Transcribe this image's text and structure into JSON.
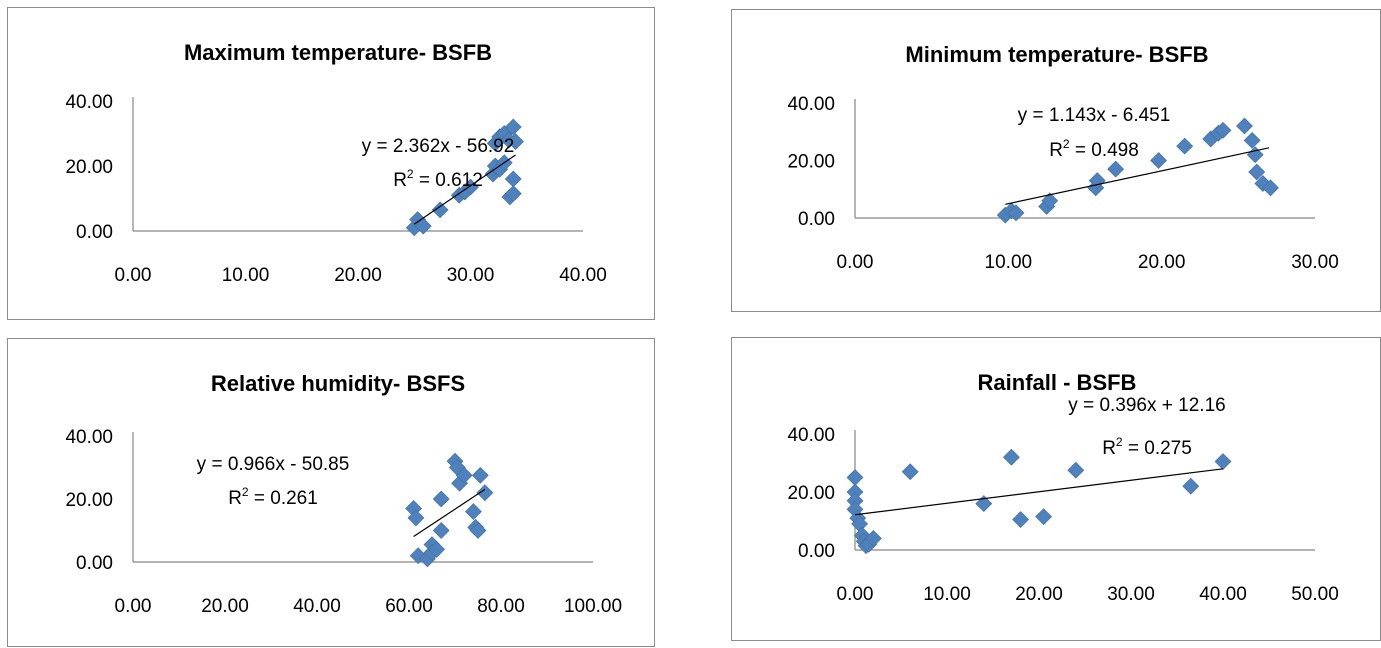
{
  "chart_data": [
    {
      "type": "scatter",
      "title": "Maximum temperature- BSFB",
      "x_ticks": [
        "0.00",
        "10.00",
        "20.00",
        "30.00",
        "40.00"
      ],
      "y_ticks": [
        "0.00",
        "20.00",
        "40.00"
      ],
      "xlim": [
        0,
        40
      ],
      "ylim": [
        0,
        40
      ],
      "points": [
        [
          25,
          1
        ],
        [
          25.3,
          3.5
        ],
        [
          25.8,
          1.5
        ],
        [
          27.3,
          6.5
        ],
        [
          29,
          11
        ],
        [
          29.5,
          12
        ],
        [
          30,
          13.5
        ],
        [
          32,
          17.5
        ],
        [
          32.2,
          20
        ],
        [
          32.6,
          19
        ],
        [
          33,
          21
        ],
        [
          32.2,
          27
        ],
        [
          32.6,
          29
        ],
        [
          33,
          30
        ],
        [
          33.4,
          28
        ],
        [
          33.8,
          32
        ],
        [
          34,
          27.5
        ],
        [
          33.5,
          10.5
        ],
        [
          33.8,
          11.5
        ],
        [
          33.8,
          16
        ]
      ],
      "trendline": {
        "slope": 2.362,
        "intercept": -56.92,
        "x_range": [
          25,
          34
        ]
      },
      "equation": "y = 2.362x - 56.92",
      "r2_prefix": "R",
      "r2_value": " = 0.612"
    },
    {
      "type": "scatter",
      "title": "Minimum temperature- BSFB",
      "x_ticks": [
        "0.00",
        "10.00",
        "20.00",
        "30.00"
      ],
      "y_ticks": [
        "0.00",
        "20.00",
        "40.00"
      ],
      "xlim": [
        0,
        30
      ],
      "ylim": [
        0,
        40
      ],
      "points": [
        [
          9.8,
          1
        ],
        [
          10.2,
          2.5
        ],
        [
          10.5,
          1.8
        ],
        [
          12.5,
          4
        ],
        [
          12.7,
          6
        ],
        [
          15.7,
          10.5
        ],
        [
          15.8,
          13
        ],
        [
          17,
          17
        ],
        [
          19.8,
          20
        ],
        [
          21.5,
          25
        ],
        [
          23.2,
          27.5
        ],
        [
          23.7,
          29.5
        ],
        [
          24,
          30.5
        ],
        [
          25.4,
          32
        ],
        [
          25.9,
          27
        ],
        [
          26.1,
          22
        ],
        [
          26.2,
          16
        ],
        [
          26.6,
          12
        ],
        [
          27.1,
          10.5
        ]
      ],
      "trendline": {
        "slope": 1.143,
        "intercept": -6.451,
        "x_range": [
          9.8,
          27
        ]
      },
      "equation": "y = 1.143x - 6.451",
      "r2_prefix": "R",
      "r2_value": " = 0.498"
    },
    {
      "type": "scatter",
      "title": "Relative humidity- BSFS",
      "x_ticks": [
        "0.00",
        "20.00",
        "40.00",
        "60.00",
        "80.00",
        "100.00"
      ],
      "y_ticks": [
        "0.00",
        "20.00",
        "40.00"
      ],
      "xlim": [
        0,
        100
      ],
      "ylim": [
        0,
        40
      ],
      "points": [
        [
          61,
          17
        ],
        [
          61.5,
          14
        ],
        [
          62,
          2
        ],
        [
          64,
          1
        ],
        [
          65,
          5.5
        ],
        [
          65,
          3
        ],
        [
          66,
          4
        ],
        [
          67,
          10
        ],
        [
          67,
          20
        ],
        [
          70,
          32
        ],
        [
          70.5,
          30
        ],
        [
          71,
          25
        ],
        [
          72,
          27.5
        ],
        [
          74,
          16
        ],
        [
          74.5,
          11
        ],
        [
          75,
          10
        ],
        [
          75.5,
          27.5
        ],
        [
          76.5,
          22
        ]
      ],
      "trendline": {
        "slope": 0.966,
        "intercept": -50.85,
        "x_range": [
          61,
          76.5
        ]
      },
      "equation": "y = 0.966x - 50.85",
      "r2_prefix": "R",
      "r2_value": " = 0.261"
    },
    {
      "type": "scatter",
      "title": "Rainfall - BSFB",
      "x_ticks": [
        "0.00",
        "10.00",
        "20.00",
        "30.00",
        "40.00",
        "50.00"
      ],
      "y_ticks": [
        "0.00",
        "20.00",
        "40.00"
      ],
      "xlim": [
        0,
        50
      ],
      "ylim": [
        0,
        40
      ],
      "points": [
        [
          0,
          25
        ],
        [
          0,
          20
        ],
        [
          0,
          17
        ],
        [
          0,
          14
        ],
        [
          0.3,
          11
        ],
        [
          0.5,
          9
        ],
        [
          0.8,
          5
        ],
        [
          1,
          3
        ],
        [
          1.2,
          1.5
        ],
        [
          1.5,
          2
        ],
        [
          2,
          4
        ],
        [
          6,
          27
        ],
        [
          14,
          16
        ],
        [
          17,
          32
        ],
        [
          18,
          10.5
        ],
        [
          20.5,
          11.5
        ],
        [
          24,
          27.5
        ],
        [
          36.5,
          22
        ],
        [
          40,
          30.5
        ]
      ],
      "trendline": {
        "slope": 0.396,
        "intercept": 12.16,
        "x_range": [
          0,
          40
        ]
      },
      "equation": "y = 0.396x + 12.16",
      "r2_prefix": "R",
      "r2_value": " = 0.275"
    }
  ],
  "colors": {
    "marker": "#4f81bd",
    "trendline": "#000000",
    "axis": "#868686",
    "border": "#8c8c8c"
  }
}
